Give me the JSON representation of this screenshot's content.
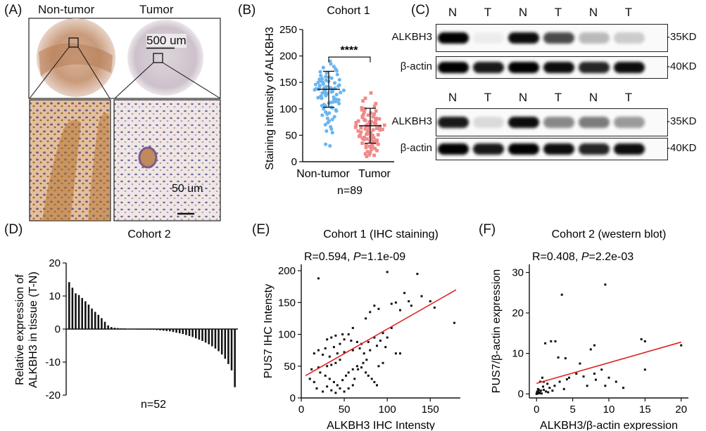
{
  "panelA": {
    "label": "(A)",
    "col_nontumor": "Non-tumor",
    "col_tumor": "Tumor",
    "scale_large": "500 um",
    "scale_small": "50 um"
  },
  "panelB": {
    "label": "(B)",
    "title": "Cohort 1",
    "ylabel": "Staining intensity of ALKBH3",
    "sig": "****",
    "n": "n=89",
    "colors": {
      "non_tumor": "#6ab6f0",
      "tumor": "#f08a8a"
    }
  },
  "panelC": {
    "label": "(C)",
    "lanes": [
      "N",
      "T",
      "N",
      "T",
      "N",
      "T"
    ],
    "blots": [
      {
        "rows": [
          {
            "name": "ALKBH3",
            "size": "-35KD"
          },
          {
            "name": "β-actin",
            "size": "-40KD"
          }
        ]
      },
      {
        "rows": [
          {
            "name": "ALKBH3",
            "size": "-35KD"
          },
          {
            "name": "β-actin",
            "size": "-40KD"
          }
        ]
      }
    ]
  },
  "panelD": {
    "label": "(D)",
    "title": "Cohort 2",
    "n": "n=52"
  },
  "panelE": {
    "label": "(E)",
    "title": "Cohort 1 (IHC staining)",
    "stat_r": "R=0.594, ",
    "stat_p_label": "P",
    "stat_p_value": "=1.1e-09"
  },
  "panelF": {
    "label": "(F)",
    "title": "Cohort 2 (western blot)",
    "stat_r": "R=0.408, ",
    "stat_p_label": "P",
    "stat_p_value": "=2.2e-03"
  },
  "chart_data": [
    {
      "type": "scatter",
      "title": "Cohort 1",
      "ylabel": "Staining intensity of ALKBH3",
      "categories": [
        "Non-tumor",
        "Tumor"
      ],
      "ylim": [
        0,
        250
      ],
      "yticks": [
        0,
        50,
        100,
        150,
        200,
        250
      ],
      "series": [
        {
          "name": "Non-tumor",
          "mean": 137,
          "sd_low": 103,
          "sd_high": 171,
          "values": [
            175,
            172,
            170,
            168,
            165,
            163,
            161,
            160,
            158,
            157,
            156,
            155,
            154,
            153,
            152,
            150,
            150,
            149,
            148,
            147,
            146,
            145,
            144,
            143,
            142,
            141,
            140,
            140,
            139,
            138,
            138,
            137,
            137,
            136,
            135,
            134,
            133,
            132,
            131,
            130,
            130,
            129,
            128,
            127,
            126,
            125,
            124,
            123,
            122,
            121,
            120,
            119,
            118,
            117,
            115,
            114,
            113,
            112,
            111,
            110,
            108,
            107,
            106,
            105,
            103,
            102,
            100,
            98,
            96,
            94,
            92,
            90,
            88,
            85,
            82,
            80,
            77,
            74,
            70,
            66,
            62,
            58,
            55,
            33,
            30,
            185,
            190,
            180,
            178
          ]
        },
        {
          "name": "Tumor",
          "mean": 68,
          "sd_low": 35,
          "sd_high": 101,
          "values": [
            120,
            110,
            105,
            102,
            100,
            98,
            96,
            94,
            92,
            90,
            89,
            88,
            86,
            85,
            84,
            82,
            81,
            80,
            79,
            78,
            77,
            76,
            75,
            74,
            73,
            72,
            71,
            70,
            70,
            69,
            68,
            68,
            67,
            66,
            65,
            65,
            64,
            63,
            62,
            61,
            60,
            60,
            59,
            58,
            57,
            56,
            55,
            55,
            54,
            53,
            52,
            51,
            50,
            50,
            49,
            48,
            47,
            46,
            45,
            45,
            44,
            43,
            42,
            41,
            40,
            40,
            39,
            38,
            37,
            36,
            35,
            34,
            33,
            32,
            30,
            29,
            28,
            27,
            25,
            23,
            21,
            19,
            17,
            15,
            13,
            12,
            10,
            130,
            115
          ]
        }
      ]
    },
    {
      "type": "bar",
      "title": "Cohort 2",
      "ylabel": "Relative expression of ALKBH3 in tissue (T-N)",
      "ylim": [
        -20,
        20
      ],
      "yticks": [
        -20,
        -10,
        0,
        10,
        20
      ],
      "xlabel": "n=52",
      "values": [
        14.2,
        12.5,
        10.8,
        10.3,
        9.4,
        8.4,
        7.4,
        6.2,
        5.2,
        4.3,
        3.3,
        2.2,
        1.1,
        0.6,
        0.4,
        0.3,
        0.2,
        0.2,
        0.1,
        0.1,
        0.1,
        0.0,
        0.0,
        -0.1,
        -0.1,
        -0.2,
        -0.2,
        -0.3,
        -0.4,
        -0.5,
        -0.6,
        -0.7,
        -0.9,
        -1.1,
        -1.3,
        -1.5,
        -1.8,
        -2.1,
        -2.4,
        -2.8,
        -3.2,
        -3.6,
        -4.1,
        -4.6,
        -5.2,
        -5.9,
        -6.7,
        -7.7,
        -9.0,
        -10.6,
        -12.5,
        -17.6
      ]
    },
    {
      "type": "scatter",
      "title": "Cohort 1 (IHC staining)",
      "xlabel": "ALKBH3 IHC Intensty",
      "ylabel": "PUS7 IHC Intensty",
      "xlim": [
        0,
        185
      ],
      "ylim": [
        0,
        210
      ],
      "xticks": [
        0,
        50,
        100,
        150
      ],
      "yticks": [
        0,
        50,
        100,
        150,
        200
      ],
      "fit": {
        "x": [
          5,
          180
        ],
        "y": [
          35,
          170
        ]
      },
      "points": [
        [
          20,
          188
        ],
        [
          100,
          198
        ],
        [
          135,
          195
        ],
        [
          120,
          165
        ],
        [
          140,
          160
        ],
        [
          155,
          142
        ],
        [
          105,
          148
        ],
        [
          178,
          118
        ],
        [
          110,
          150
        ],
        [
          90,
          140
        ],
        [
          115,
          138
        ],
        [
          80,
          135
        ],
        [
          85,
          145
        ],
        [
          125,
          152
        ],
        [
          150,
          152
        ],
        [
          128,
          145
        ],
        [
          105,
          110
        ],
        [
          75,
          125
        ],
        [
          60,
          110
        ],
        [
          55,
          100
        ],
        [
          48,
          100
        ],
        [
          40,
          98
        ],
        [
          35,
          95
        ],
        [
          30,
          92
        ],
        [
          50,
          92
        ],
        [
          58,
          90
        ],
        [
          65,
          88
        ],
        [
          70,
          85
        ],
        [
          78,
          88
        ],
        [
          85,
          95
        ],
        [
          95,
          102
        ],
        [
          45,
          85
        ],
        [
          38,
          80
        ],
        [
          28,
          78
        ],
        [
          20,
          75
        ],
        [
          15,
          70
        ],
        [
          25,
          68
        ],
        [
          33,
          65
        ],
        [
          42,
          70
        ],
        [
          50,
          72
        ],
        [
          60,
          75
        ],
        [
          68,
          78
        ],
        [
          73,
          70
        ],
        [
          80,
          75
        ],
        [
          88,
          82
        ],
        [
          92,
          90
        ],
        [
          100,
          95
        ],
        [
          110,
          70
        ],
        [
          115,
          70
        ],
        [
          98,
          80
        ],
        [
          45,
          60
        ],
        [
          40,
          55
        ],
        [
          35,
          52
        ],
        [
          30,
          50
        ],
        [
          20,
          48
        ],
        [
          12,
          45
        ],
        [
          22,
          40
        ],
        [
          28,
          35
        ],
        [
          33,
          30
        ],
        [
          38,
          25
        ],
        [
          42,
          20
        ],
        [
          48,
          28
        ],
        [
          52,
          35
        ],
        [
          55,
          40
        ],
        [
          60,
          45
        ],
        [
          65,
          50
        ],
        [
          70,
          48
        ],
        [
          75,
          40
        ],
        [
          78,
          35
        ],
        [
          82,
          30
        ],
        [
          85,
          25
        ],
        [
          88,
          20
        ],
        [
          90,
          50
        ],
        [
          95,
          55
        ],
        [
          10,
          30
        ],
        [
          15,
          25
        ],
        [
          18,
          15
        ],
        [
          25,
          10
        ],
        [
          30,
          18
        ],
        [
          35,
          12
        ],
        [
          40,
          8
        ],
        [
          45,
          15
        ],
        [
          50,
          10
        ],
        [
          55,
          15
        ],
        [
          60,
          20
        ],
        [
          62,
          30
        ],
        [
          66,
          45
        ],
        [
          72,
          55
        ],
        [
          76,
          60
        ]
      ]
    },
    {
      "type": "scatter",
      "title": "Cohort 2 (western blot)",
      "xlabel": "ALKBH3/β-actin expression",
      "ylabel": "PUS7/β-actin expression",
      "xlim": [
        -1,
        21
      ],
      "ylim": [
        -1,
        32
      ],
      "xticks": [
        0,
        5,
        10,
        15,
        20
      ],
      "yticks": [
        0,
        10,
        20,
        30
      ],
      "fit": {
        "x": [
          0,
          20
        ],
        "y": [
          2.6,
          12.8
        ]
      },
      "points": [
        [
          9.5,
          27
        ],
        [
          3.5,
          24.5
        ],
        [
          14.5,
          13.5
        ],
        [
          15,
          13
        ],
        [
          20,
          12
        ],
        [
          2,
          13
        ],
        [
          2.6,
          13
        ],
        [
          1.2,
          12.5
        ],
        [
          7.5,
          11
        ],
        [
          8,
          12
        ],
        [
          3,
          9
        ],
        [
          4,
          8.8
        ],
        [
          6,
          7.5
        ],
        [
          5.5,
          5
        ],
        [
          15,
          6
        ],
        [
          8,
          5
        ],
        [
          9,
          6
        ],
        [
          10,
          4
        ],
        [
          11,
          3
        ],
        [
          12,
          1.5
        ],
        [
          9.5,
          2
        ],
        [
          8.2,
          3.5
        ],
        [
          7,
          2
        ],
        [
          4.5,
          4
        ],
        [
          3.2,
          3
        ],
        [
          2.5,
          2
        ],
        [
          1.8,
          1.5
        ],
        [
          1.5,
          2.5
        ],
        [
          1,
          3
        ],
        [
          0.8,
          4
        ],
        [
          0.5,
          3
        ],
        [
          0.3,
          1
        ],
        [
          0.2,
          0.5
        ],
        [
          0,
          0
        ],
        [
          0.1,
          0.2
        ],
        [
          0.4,
          0.3
        ],
        [
          0.6,
          0.8
        ],
        [
          0.7,
          0.1
        ],
        [
          1,
          1
        ],
        [
          1.3,
          0.6
        ],
        [
          0.2,
          1.2
        ],
        [
          0.9,
          1.8
        ],
        [
          0.3,
          0.4
        ],
        [
          0.5,
          0.2
        ],
        [
          0.1,
          0.6
        ],
        [
          0.2,
          0.1
        ],
        [
          0.05,
          0.3
        ],
        [
          1.6,
          0.4
        ],
        [
          2.2,
          0.8
        ],
        [
          3.8,
          1.2
        ],
        [
          4.2,
          3.6
        ],
        [
          6.5,
          4.3
        ]
      ]
    }
  ]
}
